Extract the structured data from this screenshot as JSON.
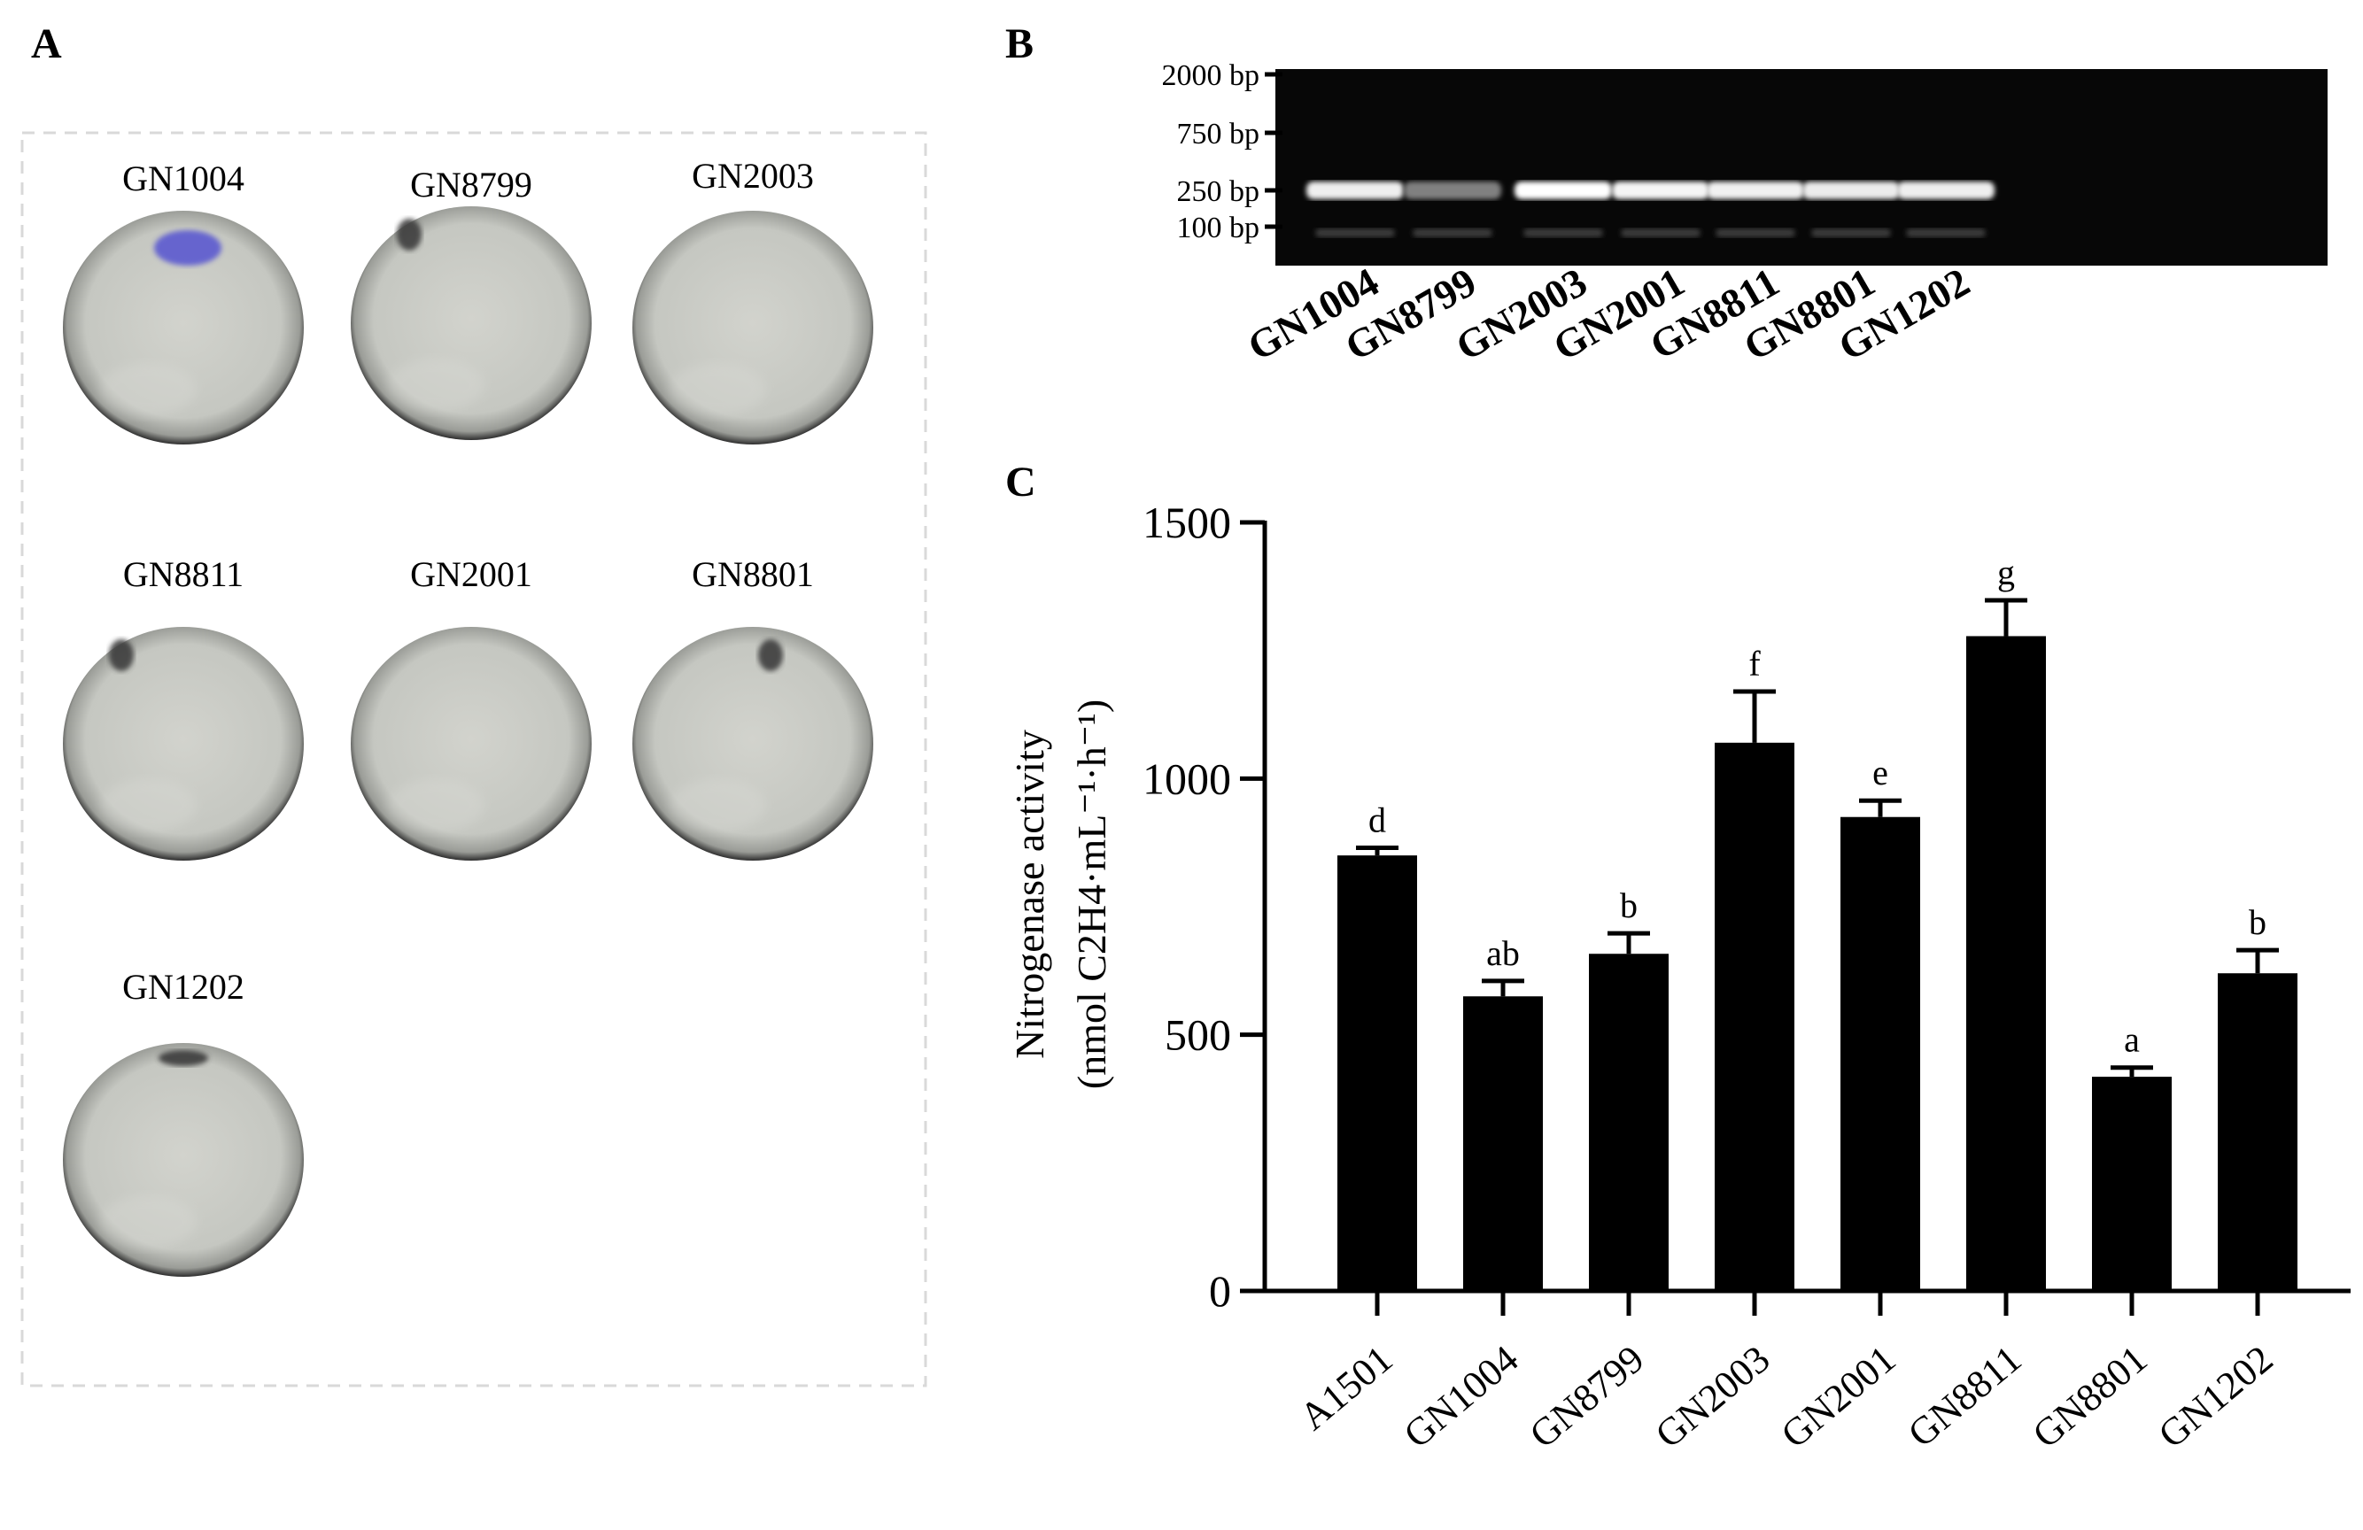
{
  "panels": {
    "a": {
      "letter": "A"
    },
    "b": {
      "letter": "B"
    },
    "c": {
      "letter": "C"
    }
  },
  "plates": [
    {
      "label": "GN1004",
      "mark": "purple-smear"
    },
    {
      "label": "GN8799",
      "mark": "dark-spot"
    },
    {
      "label": "GN2003",
      "mark": "none"
    },
    {
      "label": "GN8811",
      "mark": "dark-spot"
    },
    {
      "label": "GN2001",
      "mark": "none"
    },
    {
      "label": "GN8801",
      "mark": "dark-spot"
    },
    {
      "label": "GN1202",
      "mark": "dark-streak"
    }
  ],
  "gel": {
    "markers": [
      "2000  bp",
      "750  bp",
      "250  bp",
      "100  bp"
    ],
    "lanes": [
      "GN1004",
      "GN8799",
      "GN2003",
      "GN2001",
      "GN8811",
      "GN8801",
      "GN1202"
    ],
    "band_250_intensity": [
      0.92,
      0.35,
      1.0,
      0.95,
      0.93,
      0.9,
      0.92
    ]
  },
  "chart_data": {
    "type": "bar",
    "categories": [
      "A1501",
      "GN1004",
      "GN8799",
      "GN2003",
      "GN2001",
      "GN8811",
      "GN8801",
      "GN1202"
    ],
    "values": [
      850,
      575,
      658,
      1070,
      925,
      1278,
      418,
      620
    ],
    "errors": [
      15,
      30,
      40,
      100,
      32,
      70,
      18,
      45
    ],
    "significance": [
      "d",
      "ab",
      "b",
      "f",
      "e",
      "g",
      "a",
      "b"
    ],
    "ylabel_line1": "Nitrogenase activity",
    "ylabel_line2": "(nmol C2H4·mL⁻¹·h⁻¹)",
    "ylim": [
      0,
      1500
    ],
    "yticks": [
      0,
      500,
      1000,
      1500
    ],
    "ytick_labels": [
      "0",
      "500",
      "1000",
      "1500"
    ],
    "bar_color": "#000000",
    "grid": false
  }
}
